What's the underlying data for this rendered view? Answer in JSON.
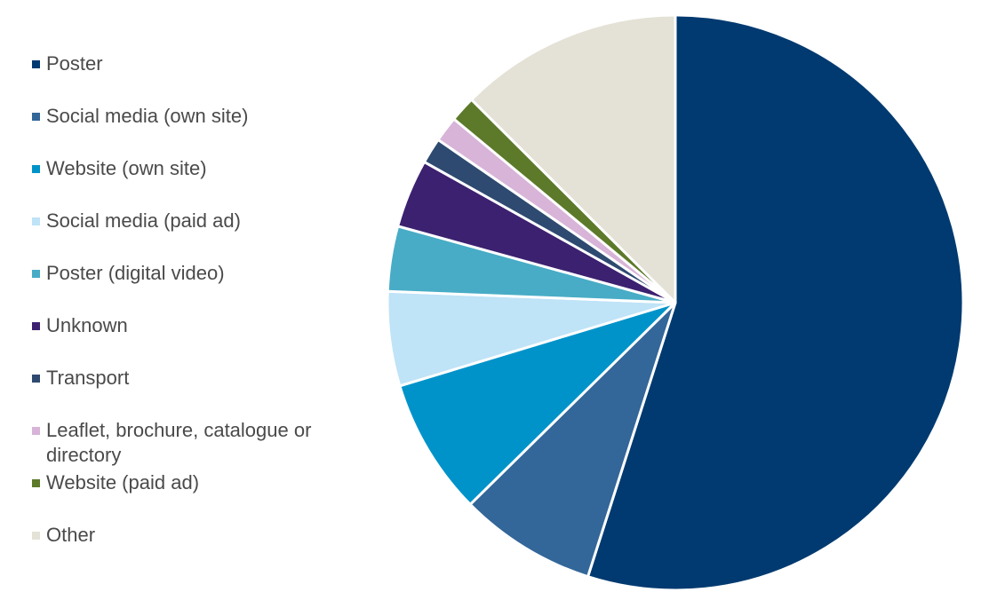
{
  "chart_data": {
    "type": "pie",
    "title": "",
    "legend_position": "left",
    "slices": [
      {
        "label": "Poster",
        "value": 57,
        "color": "#003A70"
      },
      {
        "label": "Social media (own site)",
        "value": 8,
        "color": "#336699"
      },
      {
        "label": "Website (own site)",
        "value": 8,
        "color": "#0093C9"
      },
      {
        "label": "Social media (paid ad)",
        "value": 5.5,
        "color": "#BFE3F7"
      },
      {
        "label": "Poster (digital video)",
        "value": 3.8,
        "color": "#48ACC6"
      },
      {
        "label": "Unknown",
        "value": 4,
        "color": "#3C2170"
      },
      {
        "label": "Transport",
        "value": 1.5,
        "color": "#2E4A70"
      },
      {
        "label": "Leaflet, brochure, catalogue or directory",
        "value": 1.5,
        "color": "#D8B4D8"
      },
      {
        "label": "Website (paid ad)",
        "value": 1.5,
        "color": "#5C7A2A"
      },
      {
        "label": "Other",
        "value": 13,
        "color": "#E4E2D6"
      }
    ]
  }
}
